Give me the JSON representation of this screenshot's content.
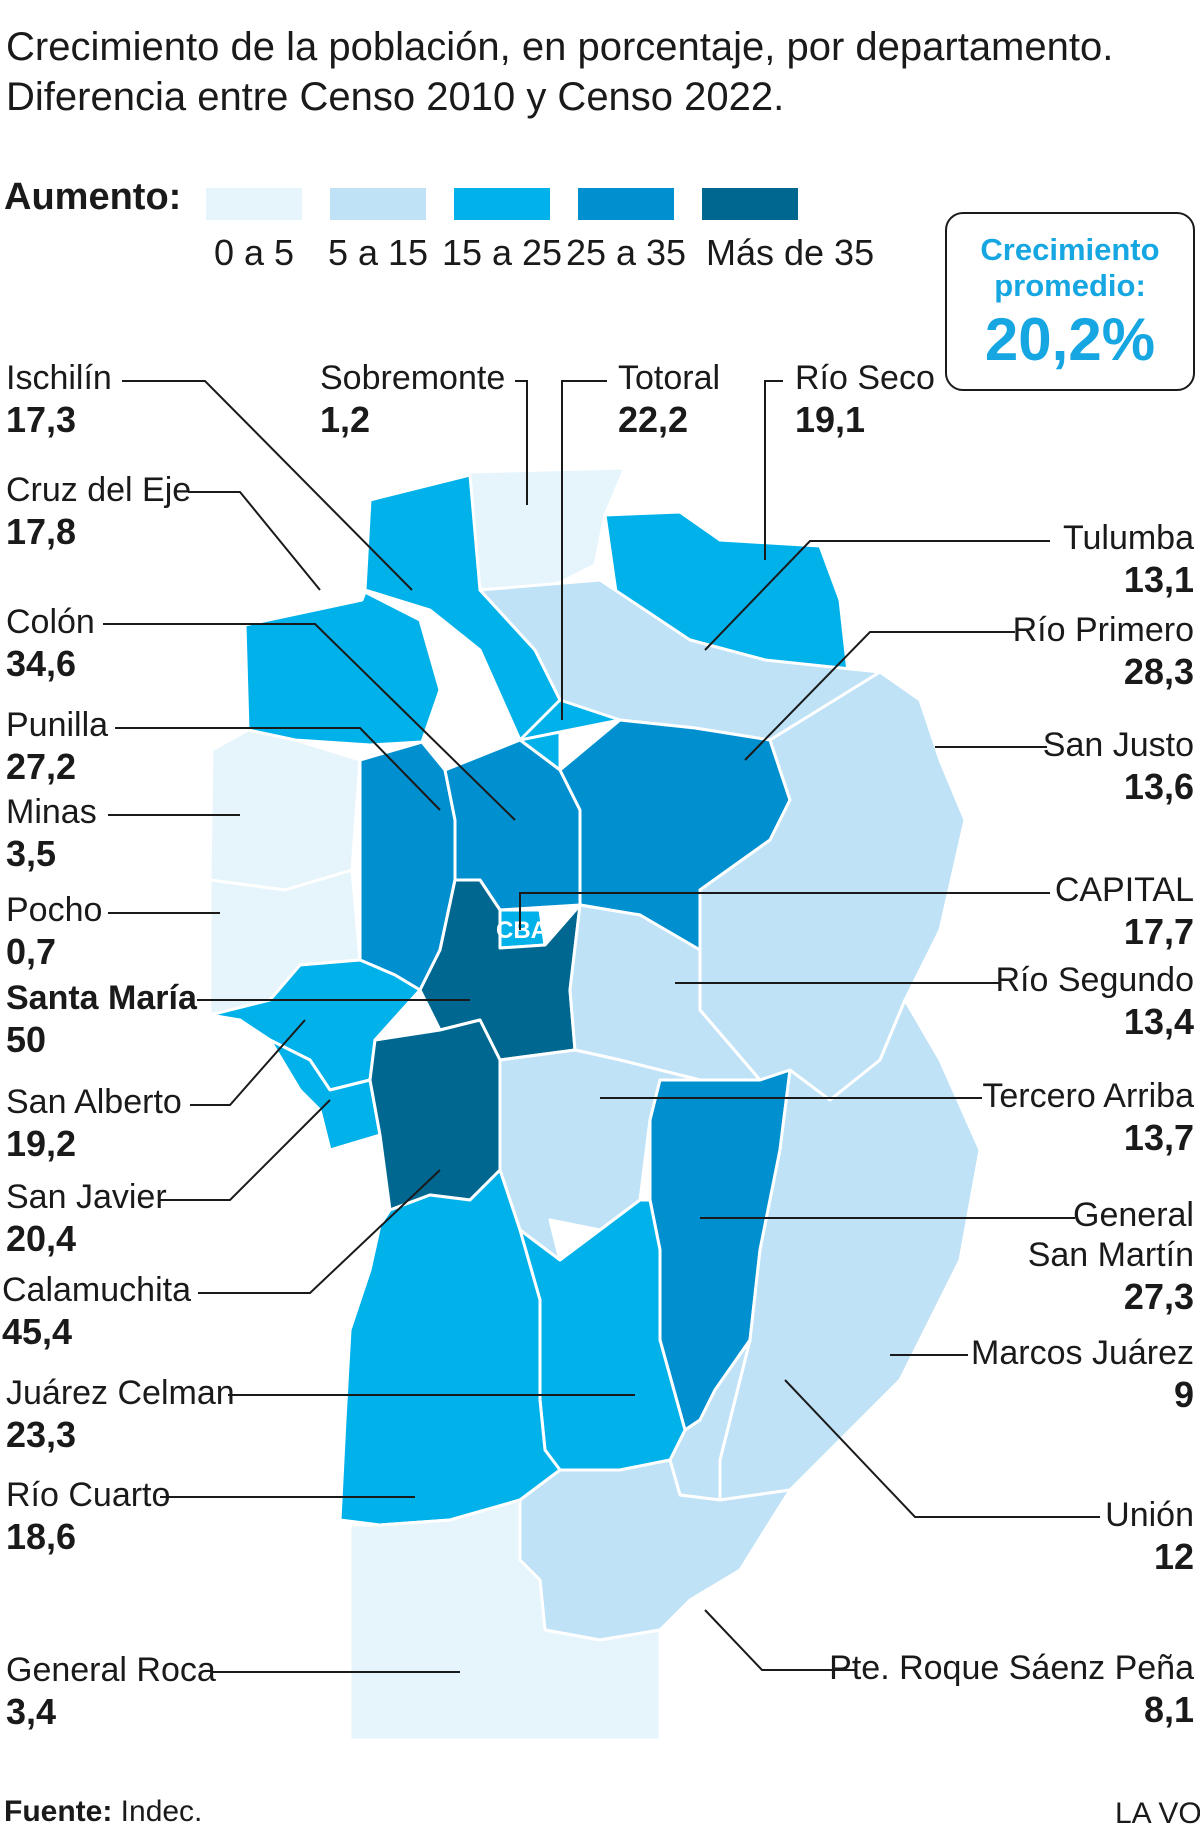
{
  "title": {
    "line1": "Crecimiento de la población, en porcentaje, por departamento.",
    "line2": "Diferencia entre Censo 2010 y Censo 2022."
  },
  "legend": {
    "heading": "Aumento:",
    "items": [
      {
        "label": "0 a 5",
        "color": "#e6f4fc"
      },
      {
        "label": "5 a 15",
        "color": "#bfe2f7"
      },
      {
        "label": "15 a 25",
        "color": "#00b1ea"
      },
      {
        "label": "25 a 35",
        "color": "#0090d0"
      },
      {
        "label": "Más de 35",
        "color": "#006890"
      }
    ]
  },
  "average": {
    "label": "Crecimiento promedio:",
    "value": "20,2%"
  },
  "city_marker": "CBA",
  "departments": [
    {
      "id": "ischilin",
      "name": "Ischilín",
      "value": "17,3"
    },
    {
      "id": "sobremonte",
      "name": "Sobremonte",
      "value": "1,2"
    },
    {
      "id": "totoral",
      "name": "Totoral",
      "value": "22,2"
    },
    {
      "id": "rio-seco",
      "name": "Río Seco",
      "value": "19,1"
    },
    {
      "id": "cruz-del-eje",
      "name": "Cruz del Eje",
      "value": "17,8"
    },
    {
      "id": "tulumba",
      "name": "Tulumba",
      "value": "13,1"
    },
    {
      "id": "colon",
      "name": "Colón",
      "value": "34,6"
    },
    {
      "id": "rio-primero",
      "name": "Río Primero",
      "value": "28,3"
    },
    {
      "id": "punilla",
      "name": "Punilla",
      "value": "27,2"
    },
    {
      "id": "san-justo",
      "name": "San Justo",
      "value": "13,6"
    },
    {
      "id": "minas",
      "name": "Minas",
      "value": "3,5"
    },
    {
      "id": "capital",
      "name": "CAPITAL",
      "value": "17,7"
    },
    {
      "id": "pocho",
      "name": "Pocho",
      "value": "0,7"
    },
    {
      "id": "rio-segundo",
      "name": "Río Segundo",
      "value": "13,4"
    },
    {
      "id": "santa-maria",
      "name": "Santa María",
      "value": "50"
    },
    {
      "id": "tercero-arriba",
      "name": "Tercero Arriba",
      "value": "13,7"
    },
    {
      "id": "san-alberto",
      "name": "San Alberto",
      "value": "19,2"
    },
    {
      "id": "general-san-martin",
      "name": "General San Martín",
      "name_line1": "General",
      "name_line2": "San Martín",
      "value": "27,3"
    },
    {
      "id": "san-javier",
      "name": "San Javier",
      "value": "20,4"
    },
    {
      "id": "calamuchita",
      "name": "Calamuchita",
      "value": "45,4"
    },
    {
      "id": "marcos-juarez",
      "name": "Marcos Juárez",
      "value": "9"
    },
    {
      "id": "juarez-celman",
      "name": "Juárez Celman",
      "value": "23,3"
    },
    {
      "id": "union",
      "name": "Unión",
      "value": "12"
    },
    {
      "id": "rio-cuarto",
      "name": "Río Cuarto",
      "value": "18,6"
    },
    {
      "id": "pte-roque-saenz-pena",
      "name": "Pte. Roque Sáenz Peña",
      "value": "8,1"
    },
    {
      "id": "general-roca",
      "name": "General Roca",
      "value": "3,4"
    }
  ],
  "source": {
    "label": "Fuente:",
    "value": "Indec."
  },
  "brand": "LA VO"
}
